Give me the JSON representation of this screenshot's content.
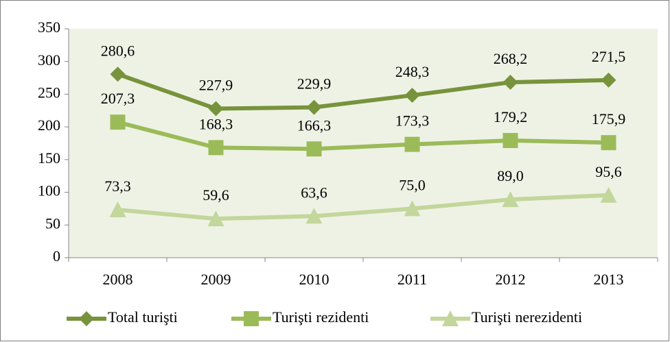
{
  "chart_data": {
    "type": "line",
    "categories": [
      "2008",
      "2009",
      "2010",
      "2011",
      "2012",
      "2013"
    ],
    "series": [
      {
        "name": "Total turişti",
        "color": "#77933c",
        "marker": "diamond",
        "values": [
          280.6,
          227.9,
          229.9,
          248.3,
          268.2,
          271.5
        ],
        "value_labels": [
          "280,6",
          "227,9",
          "229,9",
          "248,3",
          "268,2",
          "271,5"
        ]
      },
      {
        "name": "Turişti rezidenti",
        "color": "#9bbb59",
        "marker": "square",
        "values": [
          207.3,
          168.3,
          166.3,
          173.3,
          179.2,
          175.9
        ],
        "value_labels": [
          "207,3",
          "168,3",
          "166,3",
          "173,3",
          "179,2",
          "175,9"
        ]
      },
      {
        "name": "Turişti nerezidenti",
        "color": "#c3d69b",
        "marker": "triangle",
        "values": [
          73.3,
          59.6,
          63.6,
          75.0,
          89.0,
          95.6
        ],
        "value_labels": [
          "73,3",
          "59,6",
          "63,6",
          "75,0",
          "89,0",
          "95,6"
        ]
      }
    ],
    "ylim": [
      0,
      350
    ],
    "yticks": [
      0,
      50,
      100,
      150,
      200,
      250,
      300,
      350
    ],
    "grid": false,
    "legend": "bottom"
  }
}
